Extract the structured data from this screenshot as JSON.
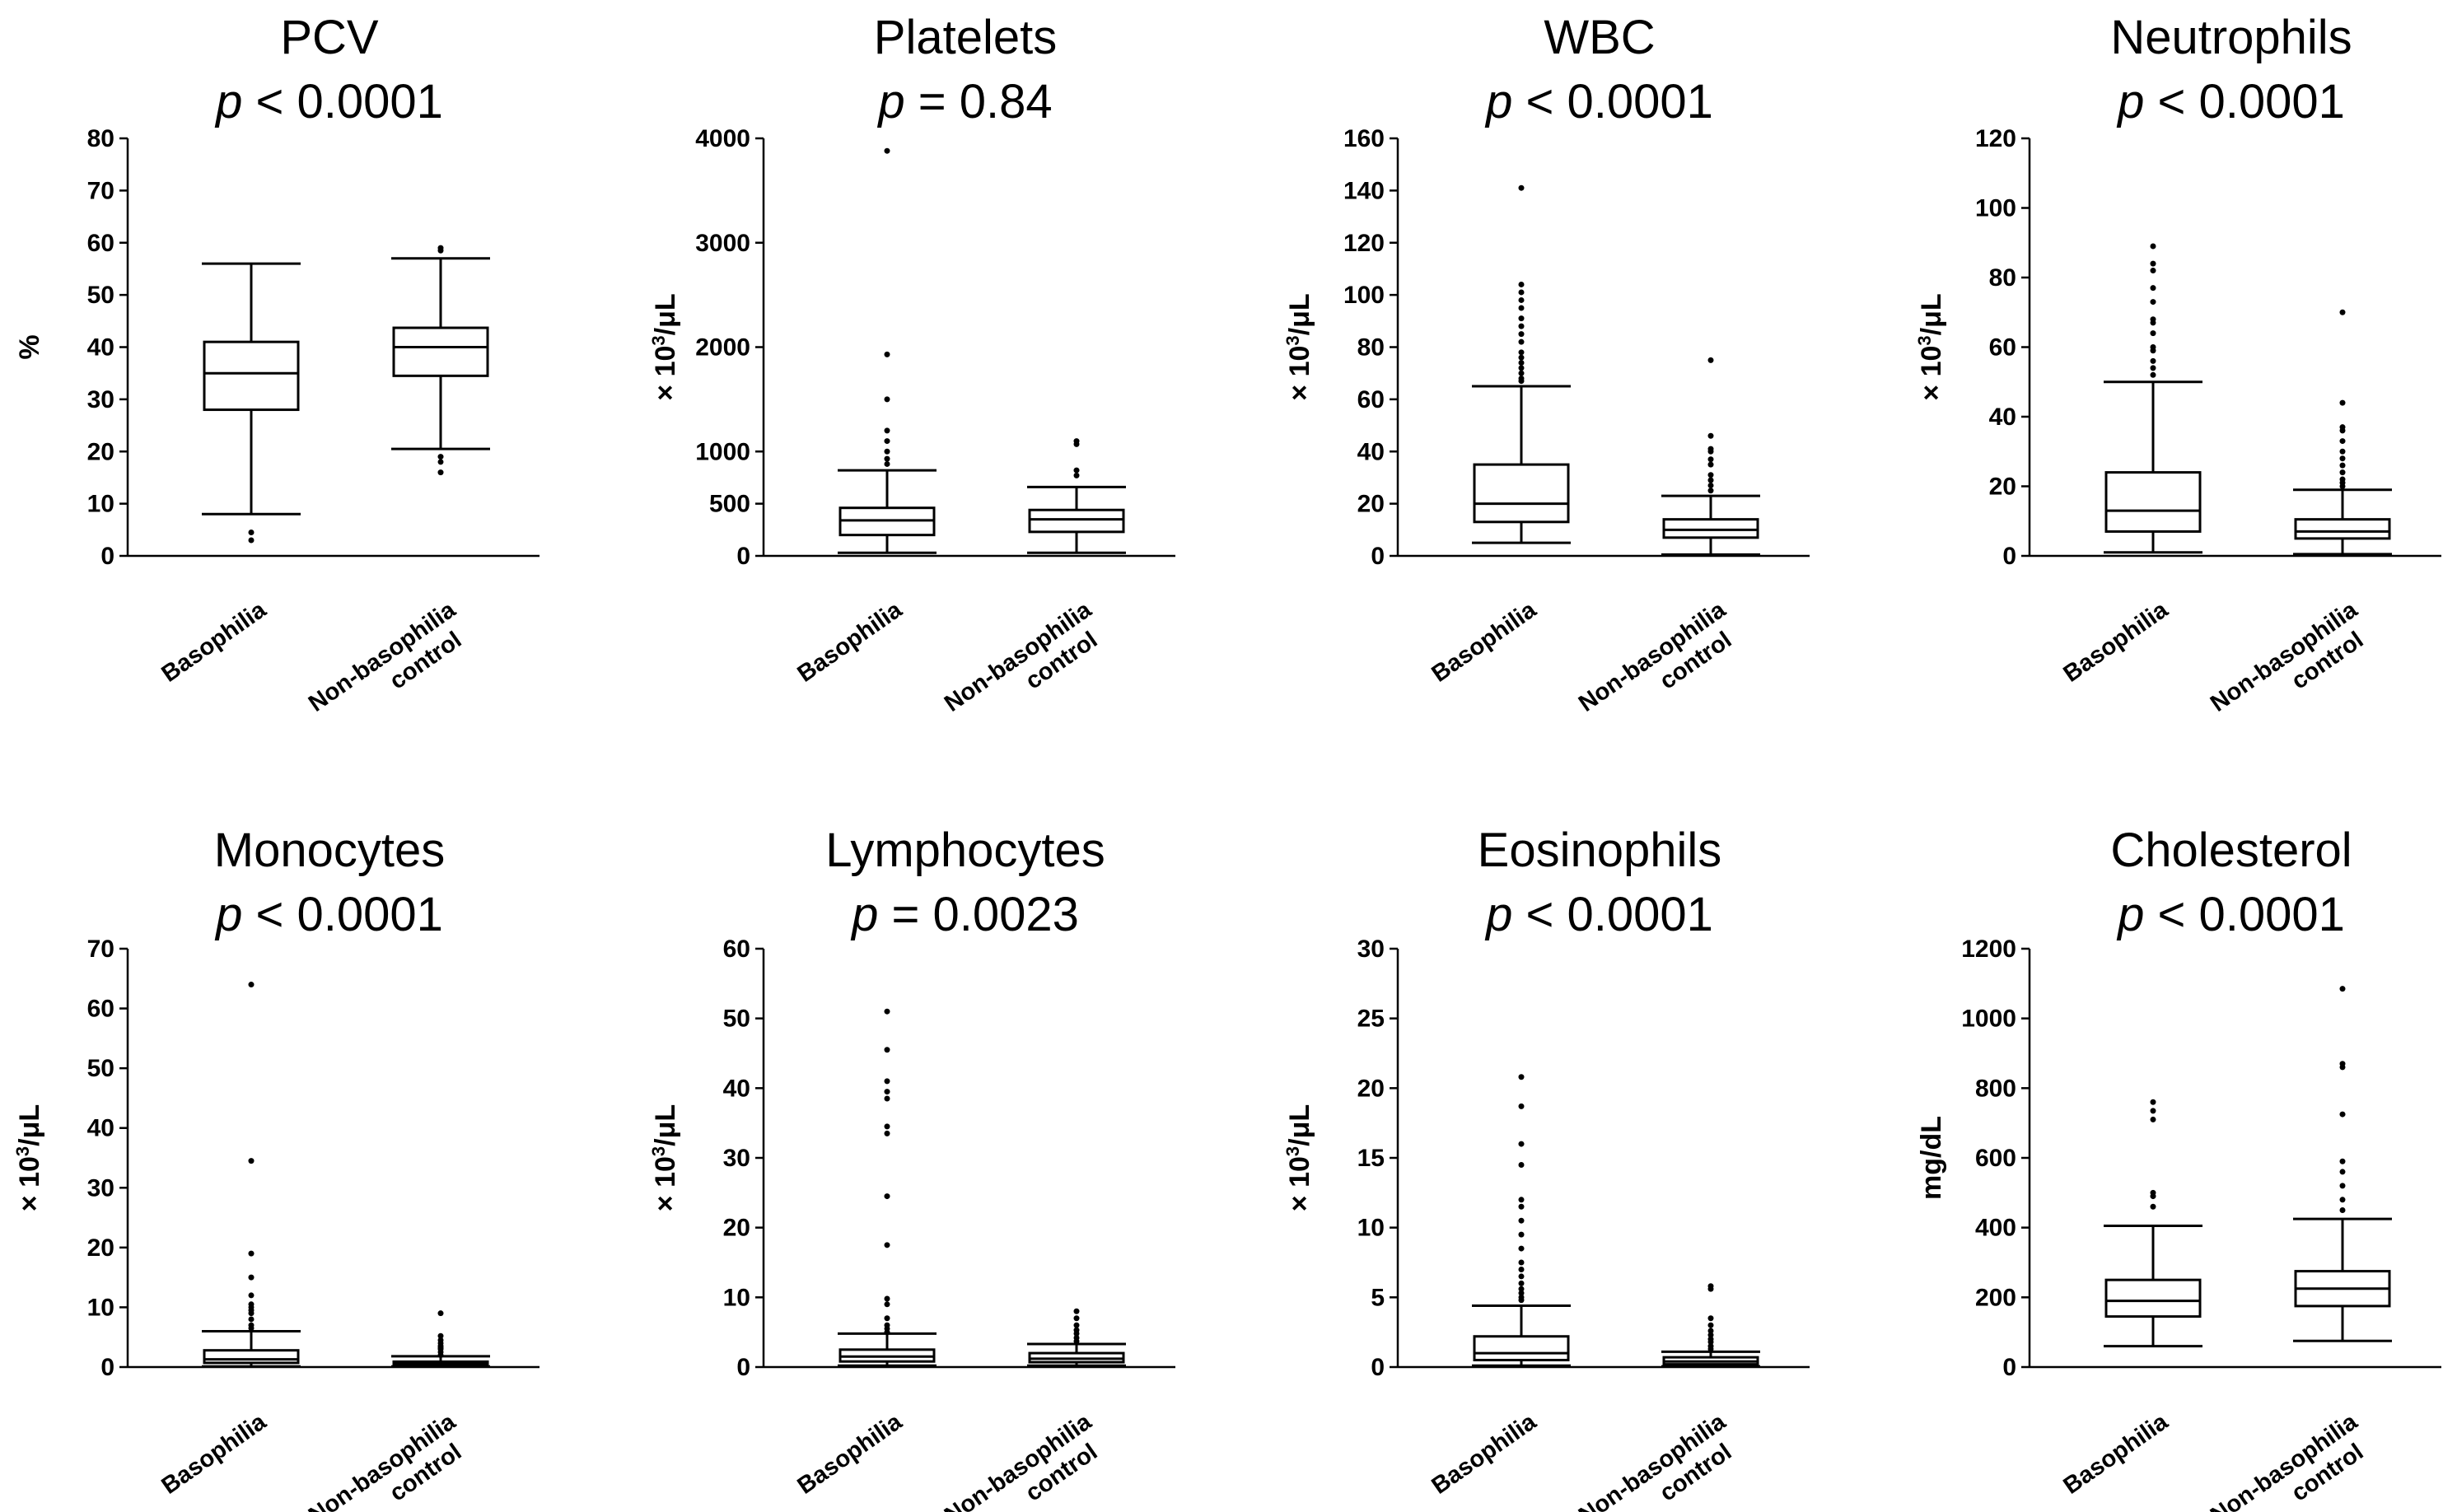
{
  "figure": {
    "ylabel_unit": "× 10³/μL"
  },
  "chart_data": [
    {
      "type": "box",
      "title": "PCV",
      "p_label": "p",
      "p_text": " < 0.0001",
      "ylabel": "%",
      "ylabel_sup": null,
      "ylim": [
        0,
        80
      ],
      "yticks": [
        0,
        10,
        20,
        30,
        40,
        50,
        60,
        70,
        80
      ],
      "ytick_labels": [
        "0",
        "10",
        "20",
        "30",
        "40",
        "50",
        "60",
        "70",
        "80"
      ],
      "categories": [
        [
          "Basophilia"
        ],
        [
          "Non-basophilia",
          "control"
        ]
      ],
      "boxes": [
        {
          "whislo": 8,
          "q1": 28,
          "med": 35,
          "q3": 41,
          "whishi": 56,
          "outliers": [
            3,
            4.5
          ]
        },
        {
          "whislo": 20.5,
          "q1": 34.5,
          "med": 40,
          "q3": 43.7,
          "whishi": 57,
          "outliers": [
            58.5,
            59,
            19,
            18,
            16
          ]
        }
      ]
    },
    {
      "type": "box",
      "title": "Platelets",
      "p_label": "p",
      "p_text": " = 0.84",
      "ylabel": "× 10",
      "ylabel_sup": "3",
      "ylabel_end": "/μL",
      "ylim": [
        0,
        4000
      ],
      "yticks": [
        0,
        500,
        1000,
        2000,
        3000,
        4000
      ],
      "ytick_labels": [
        "0",
        "500",
        "1000",
        "2000",
        "3000",
        "4000"
      ],
      "categories": [
        [
          "Basophilia"
        ],
        [
          "Non-basophilia",
          "control"
        ]
      ],
      "boxes": [
        {
          "whislo": 30,
          "q1": 200,
          "med": 340,
          "q3": 460,
          "whishi": 820,
          "outliers": [
            880,
            930,
            1000,
            1100,
            1200,
            1500,
            1930,
            3880
          ]
        },
        {
          "whislo": 30,
          "q1": 230,
          "med": 350,
          "q3": 440,
          "whishi": 660,
          "outliers": [
            770,
            820,
            1070,
            1100
          ]
        }
      ]
    },
    {
      "type": "box",
      "title": "WBC",
      "p_label": "p",
      "p_text": " < 0.0001",
      "ylabel": "× 10",
      "ylabel_sup": "3",
      "ylabel_end": "/μL",
      "ylim": [
        0,
        160
      ],
      "yticks": [
        0,
        20,
        40,
        60,
        80,
        100,
        120,
        140,
        160
      ],
      "ytick_labels": [
        "0",
        "20",
        "40",
        "60",
        "80",
        "100",
        "120",
        "140",
        "160"
      ],
      "categories": [
        [
          "Basophilia"
        ],
        [
          "Non-basophilia",
          "control"
        ]
      ],
      "boxes": [
        {
          "whislo": 5,
          "q1": 13,
          "med": 20,
          "q3": 35,
          "whishi": 65,
          "outliers": [
            67,
            68,
            70,
            72,
            74,
            76,
            78,
            82,
            85,
            88,
            91,
            95,
            98,
            101,
            104,
            141
          ]
        },
        {
          "whislo": 0.5,
          "q1": 7,
          "med": 10,
          "q3": 14,
          "whishi": 23,
          "outliers": [
            25,
            27,
            29,
            31,
            35,
            37,
            40,
            41,
            46,
            75
          ]
        }
      ]
    },
    {
      "type": "box",
      "title": "Neutrophils",
      "p_label": "p",
      "p_text": " < 0.0001",
      "ylabel": "× 10",
      "ylabel_sup": "3",
      "ylabel_end": "/μL",
      "ylim": [
        0,
        120
      ],
      "yticks": [
        0,
        20,
        40,
        60,
        80,
        100,
        120
      ],
      "ytick_labels": [
        "0",
        "20",
        "40",
        "60",
        "80",
        "100",
        "120"
      ],
      "categories": [
        [
          "Basophilia"
        ],
        [
          "Non-basophilia",
          "control"
        ]
      ],
      "boxes": [
        {
          "whislo": 1,
          "q1": 7,
          "med": 13,
          "q3": 24,
          "whishi": 50,
          "outliers": [
            52,
            54,
            56,
            59,
            60,
            64,
            67,
            68,
            73,
            77,
            82,
            84,
            89
          ]
        },
        {
          "whislo": 0.5,
          "q1": 5,
          "med": 7,
          "q3": 10.5,
          "whishi": 19,
          "outliers": [
            20,
            21,
            22,
            24,
            26,
            28,
            30,
            33,
            36,
            37,
            44,
            70
          ]
        }
      ]
    },
    {
      "type": "box",
      "title": "Monocytes",
      "p_label": "p",
      "p_text": " < 0.0001",
      "ylabel": "× 10",
      "ylabel_sup": "3",
      "ylabel_end": "/μL",
      "ylim": [
        0,
        70
      ],
      "yticks": [
        0,
        10,
        20,
        30,
        40,
        50,
        60,
        70
      ],
      "ytick_labels": [
        "0",
        "10",
        "20",
        "30",
        "40",
        "50",
        "60",
        "70"
      ],
      "categories": [
        [
          "Basophilia"
        ],
        [
          "Non-basophilia",
          "control"
        ]
      ],
      "boxes": [
        {
          "whislo": 0.1,
          "q1": 0.7,
          "med": 1.3,
          "q3": 2.8,
          "whishi": 6,
          "outliers": [
            6.5,
            7,
            8,
            9,
            9.5,
            10,
            10.5,
            12,
            15,
            19,
            34.5,
            64
          ]
        },
        {
          "whislo": 0.1,
          "q1": 0.3,
          "med": 0.6,
          "q3": 0.9,
          "whishi": 1.8,
          "outliers": [
            2,
            2.5,
            3,
            3.2,
            3.5,
            4,
            4.5,
            5.2,
            9
          ]
        }
      ]
    },
    {
      "type": "box",
      "title": "Lymphocytes",
      "p_label": "p",
      "p_text": " = 0.0023",
      "ylabel": "× 10",
      "ylabel_sup": "3",
      "ylabel_end": "/μL",
      "ylim": [
        0,
        60
      ],
      "yticks": [
        0,
        10,
        20,
        30,
        40,
        50,
        60
      ],
      "ytick_labels": [
        "0",
        "10",
        "20",
        "30",
        "40",
        "50",
        "60"
      ],
      "categories": [
        [
          "Basophilia"
        ],
        [
          "Non-basophilia",
          "control"
        ]
      ],
      "boxes": [
        {
          "whislo": 0.2,
          "q1": 0.8,
          "med": 1.5,
          "q3": 2.5,
          "whishi": 4.8,
          "outliers": [
            5,
            5.5,
            6,
            7,
            9,
            9.8,
            17.5,
            24.5,
            33.5,
            34.5,
            38.5,
            39.5,
            41,
            45.5,
            51
          ]
        },
        {
          "whislo": 0.2,
          "q1": 0.7,
          "med": 1.2,
          "q3": 2,
          "whishi": 3.3,
          "outliers": [
            3.7,
            4.2,
            4.8,
            5.3,
            6,
            7,
            8
          ]
        }
      ]
    },
    {
      "type": "box",
      "title": "Eosinophils",
      "p_label": "p",
      "p_text": " < 0.0001",
      "ylabel": "× 10",
      "ylabel_sup": "3",
      "ylabel_end": "/μL",
      "ylim": [
        0,
        30
      ],
      "yticks": [
        0,
        5,
        10,
        15,
        20,
        25,
        30
      ],
      "ytick_labels": [
        "0",
        "5",
        "10",
        "15",
        "20",
        "25",
        "30"
      ],
      "categories": [
        [
          "Basophilia"
        ],
        [
          "Non-basophilia",
          "control"
        ]
      ],
      "boxes": [
        {
          "whislo": 0.1,
          "q1": 0.5,
          "med": 1,
          "q3": 2.2,
          "whishi": 4.4,
          "outliers": [
            4.8,
            5,
            5.3,
            5.6,
            6,
            6.5,
            7,
            7.5,
            8.5,
            9.5,
            10.5,
            11.5,
            12,
            14.5,
            16,
            18.7,
            20.8
          ]
        },
        {
          "whislo": 0.05,
          "q1": 0.2,
          "med": 0.4,
          "q3": 0.7,
          "whishi": 1.1,
          "outliers": [
            1.3,
            1.5,
            1.8,
            2,
            2.3,
            2.6,
            3,
            3.5,
            5.6,
            5.8
          ]
        }
      ]
    },
    {
      "type": "box",
      "title": "Cholesterol",
      "p_label": "p",
      "p_text": " < 0.0001",
      "ylabel": "mg/dL",
      "ylabel_sup": null,
      "ylim": [
        0,
        1200
      ],
      "yticks": [
        0,
        200,
        400,
        600,
        800,
        1000,
        1200
      ],
      "ytick_labels": [
        "0",
        "200",
        "400",
        "600",
        "800",
        "1000",
        "1200"
      ],
      "categories": [
        [
          "Basophilia"
        ],
        [
          "Non-basophilia",
          "control"
        ]
      ],
      "boxes": [
        {
          "whislo": 60,
          "q1": 145,
          "med": 190,
          "q3": 250,
          "whishi": 405,
          "outliers": [
            460,
            490,
            500,
            710,
            735,
            760
          ]
        },
        {
          "whislo": 75,
          "q1": 175,
          "med": 225,
          "q3": 275,
          "whishi": 425,
          "outliers": [
            450,
            480,
            520,
            560,
            590,
            725,
            860,
            870,
            1085
          ]
        }
      ]
    }
  ]
}
